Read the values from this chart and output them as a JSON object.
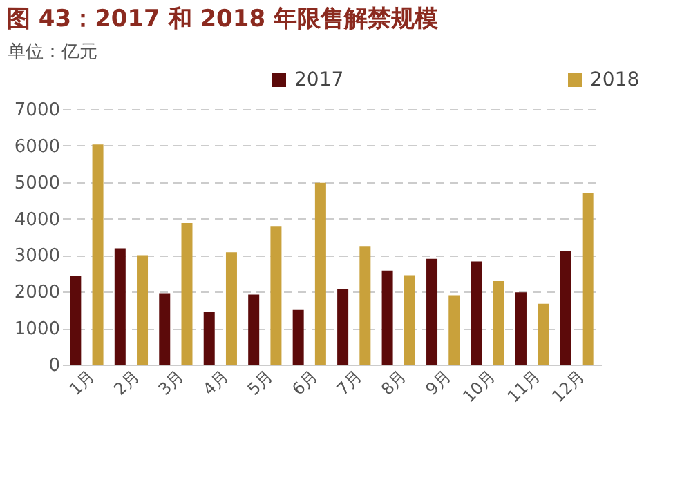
{
  "chart_data": {
    "type": "bar",
    "title": "图 43：2017 和 2018 年限售解禁规模",
    "ylabel": "单位：亿元",
    "categories": [
      "1月",
      "2月",
      "3月",
      "4月",
      "5月",
      "6月",
      "7月",
      "8月",
      "9月",
      "10月",
      "11月",
      "12月"
    ],
    "series": [
      {
        "name": "2017",
        "color": "#5c0a0a",
        "values": [
          2430,
          3190,
          1960,
          1440,
          1920,
          1500,
          2060,
          2580,
          2900,
          2830,
          1980,
          3120
        ]
      },
      {
        "name": "2018",
        "color": "#c9a13b",
        "values": [
          6030,
          3000,
          3880,
          3080,
          3800,
          4980,
          3250,
          2450,
          1900,
          2290,
          1670,
          4700
        ]
      }
    ],
    "ylim": [
      0,
      7000
    ],
    "yticks": [
      0,
      1000,
      2000,
      3000,
      4000,
      5000,
      6000,
      7000
    ],
    "grid": "y",
    "legend": "top"
  }
}
